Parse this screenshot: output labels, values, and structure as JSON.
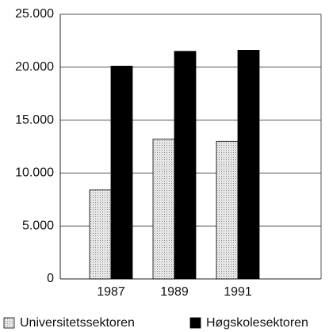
{
  "chart_data": {
    "type": "bar",
    "categories": [
      "1987",
      "1989",
      "1991"
    ],
    "series": [
      {
        "name": "Universitetssektoren",
        "color": "#cccccc",
        "values": [
          8400,
          13200,
          13000
        ]
      },
      {
        "name": "Høgskolesektoren",
        "color": "#000000",
        "values": [
          20100,
          21500,
          21600
        ]
      }
    ],
    "ylim": [
      0,
      25000
    ],
    "yticks": [
      0,
      {
        "value": 5000,
        "label": "5.000"
      },
      {
        "value": 10000,
        "label": "10.000"
      },
      {
        "value": 15000,
        "label": "15.000"
      },
      {
        "value": 20000,
        "label": "20.000"
      },
      {
        "value": 25000,
        "label": "25.000"
      }
    ],
    "grid": true
  }
}
